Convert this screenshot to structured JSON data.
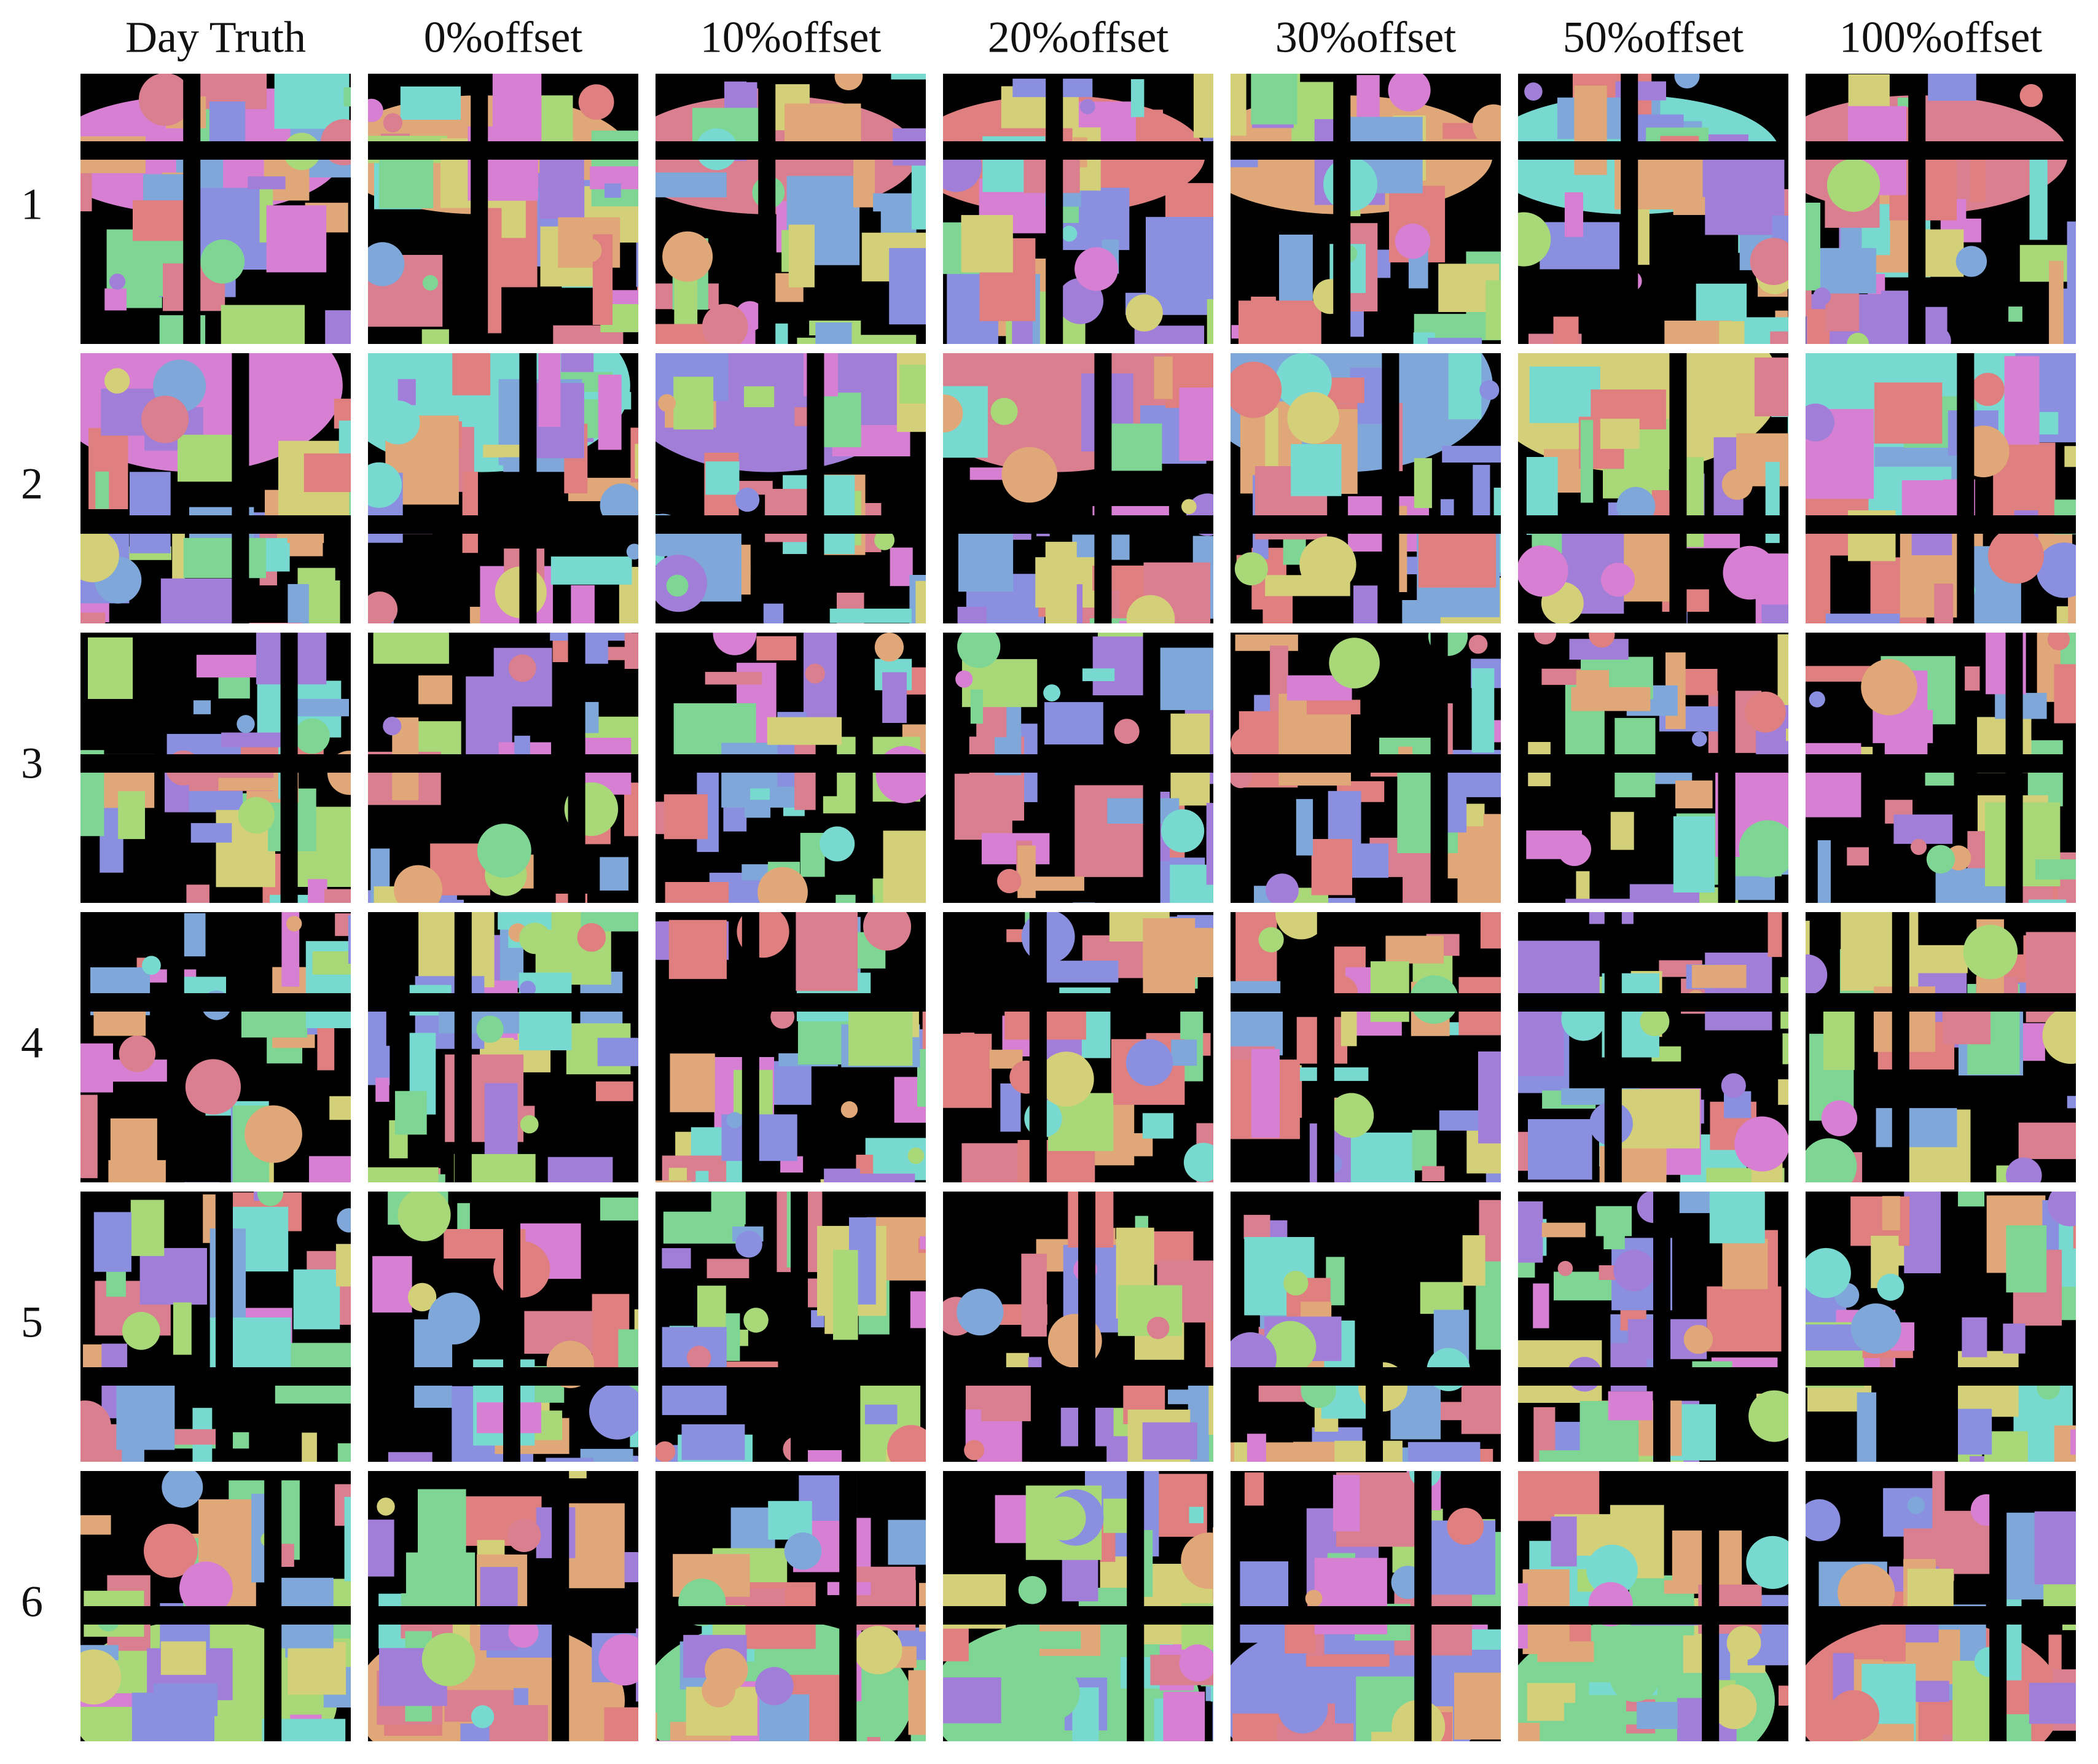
{
  "columns": [
    "Day Truth",
    "0%offset",
    "10%offset",
    "20%offset",
    "30%offset",
    "50%offset",
    "100%offset"
  ],
  "rows": [
    "1",
    "2",
    "3",
    "4",
    "5",
    "6"
  ]
}
